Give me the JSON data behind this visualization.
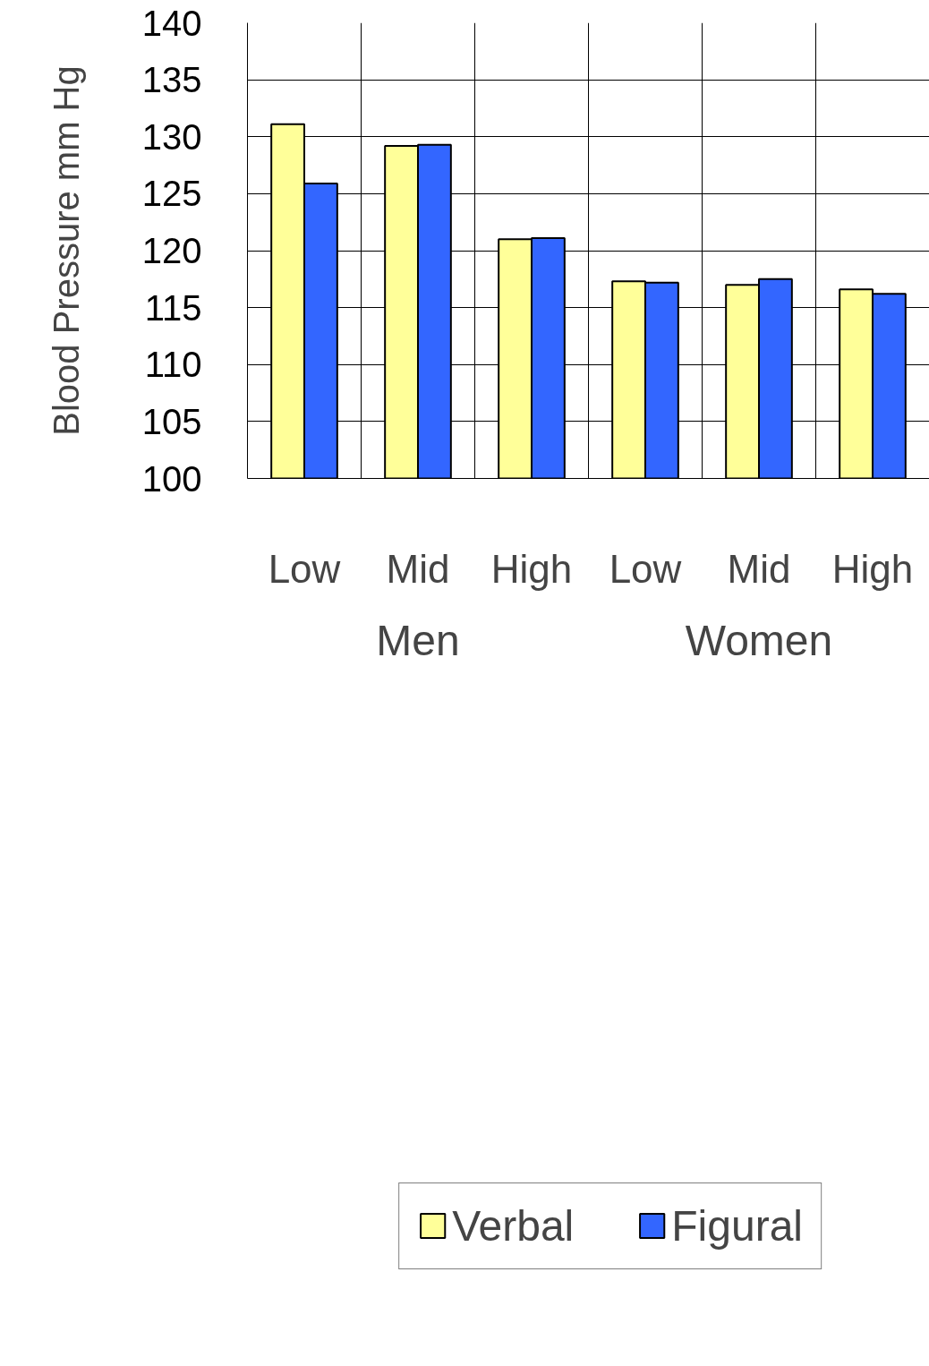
{
  "chart_data": {
    "type": "bar",
    "ylabel": "Blood Pressure mm Hg",
    "categories": [
      "Low",
      "Mid",
      "High",
      "Low",
      "Mid",
      "High"
    ],
    "annotations": [
      "Men",
      "Women"
    ],
    "series": [
      {
        "name": "Verbal",
        "color": "#ffff99",
        "values": [
          131.1,
          129.2,
          121.0,
          117.3,
          117.0,
          116.6
        ]
      },
      {
        "name": "Figural",
        "color": "#3366ff",
        "values": [
          125.9,
          129.3,
          121.1,
          117.2,
          117.5,
          116.2
        ]
      }
    ],
    "ylim": [
      100,
      140
    ],
    "yticks": [
      100,
      105,
      110,
      115,
      120,
      125,
      130,
      135,
      140
    ],
    "grid": true,
    "legend": "bottom"
  }
}
